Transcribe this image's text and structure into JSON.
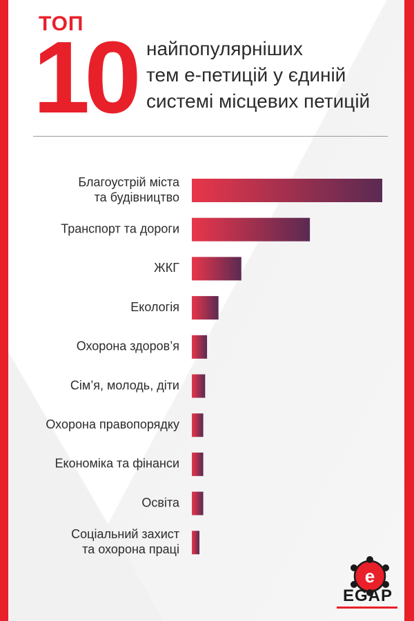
{
  "header": {
    "top_word": "ТОП",
    "top_number": "10",
    "subtitle": "найпопулярніших\nтем е-петицій у єдиній\nсистемі місцевих петицій"
  },
  "colors": {
    "accent": "#e8202a",
    "bar_start": "#e8364a",
    "bar_end": "#5a2a52"
  },
  "chart_data": {
    "type": "bar",
    "orientation": "horizontal",
    "categories": [
      [
        "Благоустрій міста",
        "та будівництво"
      ],
      [
        "Транспорт та дороги"
      ],
      [
        "ЖКГ"
      ],
      [
        "Екологія"
      ],
      [
        "Охорона здоров’я"
      ],
      [
        "Сім’я, молодь, діти"
      ],
      [
        "Охорона правопорядку"
      ],
      [
        "Економіка та фінанси"
      ],
      [
        "Освіта"
      ],
      [
        "Соціальний захист",
        "та охорона праці"
      ]
    ],
    "values": [
      100,
      62,
      26,
      14,
      8,
      7,
      6,
      6,
      6,
      4
    ],
    "value_scale": "relative (longest bar = 100)",
    "title": "",
    "xlabel": "",
    "ylabel": "",
    "grid": false,
    "legend": "none"
  },
  "logo": {
    "text": "EGAP",
    "icon": "egap-logo-icon"
  }
}
